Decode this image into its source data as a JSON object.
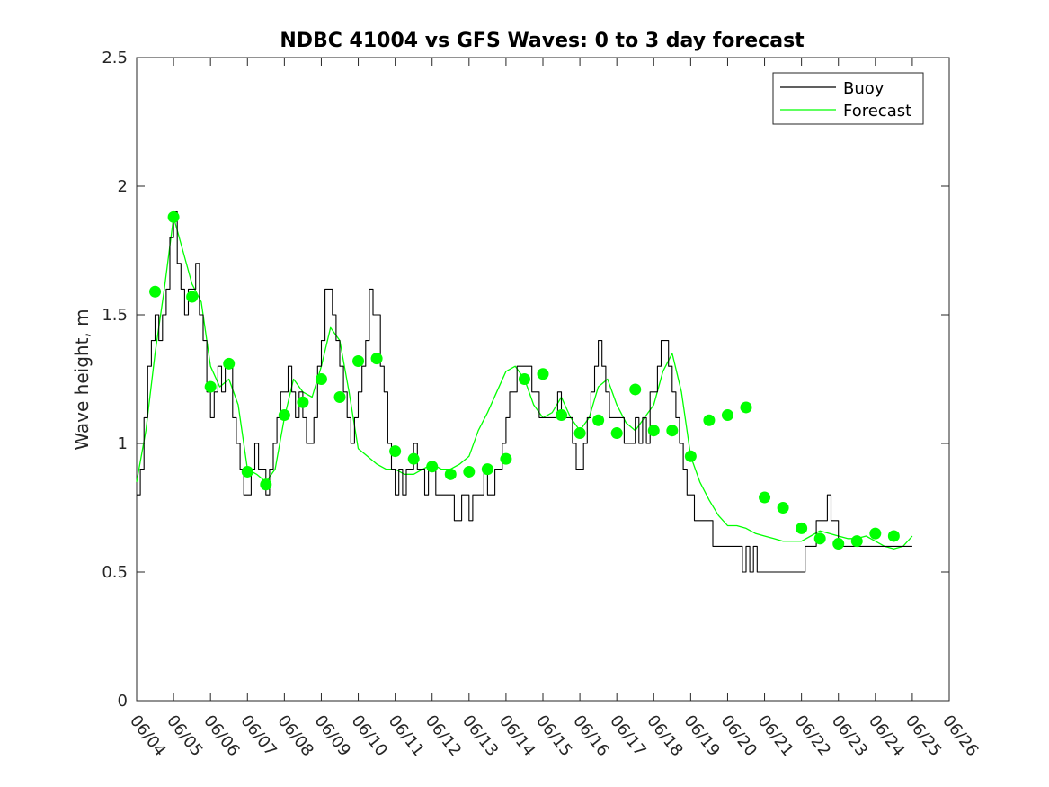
{
  "chart_data": {
    "type": "line",
    "title": "NDBC 41004 vs GFS Waves: 0 to 3 day forecast",
    "xlabel": "",
    "ylabel": "Wave height, m",
    "x_ticks": [
      "06/04",
      "06/05",
      "06/06",
      "06/07",
      "06/08",
      "06/09",
      "06/10",
      "06/11",
      "06/12",
      "06/13",
      "06/14",
      "06/15",
      "06/16",
      "06/17",
      "06/18",
      "06/19",
      "06/20",
      "06/21",
      "06/22",
      "06/23",
      "06/24",
      "06/25",
      "06/26"
    ],
    "xlim_days": [
      0,
      22
    ],
    "y_ticks": [
      0,
      0.5,
      1,
      1.5,
      2,
      2.5
    ],
    "y_tick_labels": [
      "0",
      "0.5",
      "1",
      "1.5",
      "2",
      "2.5"
    ],
    "ylim": [
      0,
      2.5
    ],
    "grid": false,
    "legend": {
      "placement": "top-right",
      "entries": [
        {
          "label": "Buoy",
          "color": "#000000"
        },
        {
          "label": "Forecast",
          "color": "#00ff00"
        }
      ]
    },
    "buoy_series": {
      "name": "Buoy",
      "color": "#000000",
      "points": [
        [
          0.0,
          0.8
        ],
        [
          0.1,
          0.9
        ],
        [
          0.2,
          1.1
        ],
        [
          0.3,
          1.3
        ],
        [
          0.4,
          1.4
        ],
        [
          0.5,
          1.5
        ],
        [
          0.6,
          1.4
        ],
        [
          0.7,
          1.5
        ],
        [
          0.8,
          1.6
        ],
        [
          0.9,
          1.8
        ],
        [
          1.0,
          1.9
        ],
        [
          1.1,
          1.7
        ],
        [
          1.2,
          1.6
        ],
        [
          1.3,
          1.5
        ],
        [
          1.4,
          1.6
        ],
        [
          1.5,
          1.6
        ],
        [
          1.6,
          1.7
        ],
        [
          1.7,
          1.5
        ],
        [
          1.8,
          1.4
        ],
        [
          1.9,
          1.2
        ],
        [
          2.0,
          1.1
        ],
        [
          2.1,
          1.2
        ],
        [
          2.2,
          1.3
        ],
        [
          2.3,
          1.2
        ],
        [
          2.4,
          1.3
        ],
        [
          2.5,
          1.3
        ],
        [
          2.6,
          1.1
        ],
        [
          2.7,
          1.0
        ],
        [
          2.8,
          0.9
        ],
        [
          2.9,
          0.8
        ],
        [
          3.0,
          0.8
        ],
        [
          3.1,
          0.9
        ],
        [
          3.2,
          1.0
        ],
        [
          3.3,
          0.9
        ],
        [
          3.4,
          0.9
        ],
        [
          3.5,
          0.8
        ],
        [
          3.6,
          0.9
        ],
        [
          3.7,
          1.0
        ],
        [
          3.8,
          1.1
        ],
        [
          3.9,
          1.2
        ],
        [
          4.0,
          1.2
        ],
        [
          4.1,
          1.3
        ],
        [
          4.2,
          1.2
        ],
        [
          4.3,
          1.1
        ],
        [
          4.4,
          1.2
        ],
        [
          4.5,
          1.1
        ],
        [
          4.6,
          1.0
        ],
        [
          4.7,
          1.0
        ],
        [
          4.8,
          1.1
        ],
        [
          4.9,
          1.3
        ],
        [
          5.0,
          1.4
        ],
        [
          5.1,
          1.6
        ],
        [
          5.2,
          1.6
        ],
        [
          5.3,
          1.5
        ],
        [
          5.4,
          1.4
        ],
        [
          5.5,
          1.3
        ],
        [
          5.6,
          1.2
        ],
        [
          5.7,
          1.1
        ],
        [
          5.8,
          1.0
        ],
        [
          5.9,
          1.1
        ],
        [
          6.0,
          1.2
        ],
        [
          6.1,
          1.3
        ],
        [
          6.2,
          1.4
        ],
        [
          6.3,
          1.6
        ],
        [
          6.4,
          1.5
        ],
        [
          6.5,
          1.5
        ],
        [
          6.6,
          1.3
        ],
        [
          6.7,
          1.2
        ],
        [
          6.8,
          1.0
        ],
        [
          6.9,
          0.9
        ],
        [
          7.0,
          0.8
        ],
        [
          7.1,
          0.9
        ],
        [
          7.2,
          0.8
        ],
        [
          7.3,
          0.9
        ],
        [
          7.4,
          0.9
        ],
        [
          7.5,
          1.0
        ],
        [
          7.6,
          0.9
        ],
        [
          7.7,
          0.9
        ],
        [
          7.8,
          0.8
        ],
        [
          7.9,
          0.9
        ],
        [
          8.0,
          0.9
        ],
        [
          8.1,
          0.8
        ],
        [
          8.2,
          0.8
        ],
        [
          8.3,
          0.8
        ],
        [
          8.4,
          0.8
        ],
        [
          8.5,
          0.8
        ],
        [
          8.6,
          0.7
        ],
        [
          8.7,
          0.7
        ],
        [
          8.8,
          0.8
        ],
        [
          8.9,
          0.8
        ],
        [
          9.0,
          0.7
        ],
        [
          9.1,
          0.8
        ],
        [
          9.2,
          0.8
        ],
        [
          9.3,
          0.8
        ],
        [
          9.4,
          0.9
        ],
        [
          9.5,
          0.8
        ],
        [
          9.6,
          0.8
        ],
        [
          9.7,
          0.9
        ],
        [
          9.8,
          0.9
        ],
        [
          9.9,
          1.0
        ],
        [
          10.0,
          1.1
        ],
        [
          10.1,
          1.2
        ],
        [
          10.2,
          1.2
        ],
        [
          10.3,
          1.3
        ],
        [
          10.4,
          1.3
        ],
        [
          10.5,
          1.3
        ],
        [
          10.6,
          1.3
        ],
        [
          10.7,
          1.2
        ],
        [
          10.8,
          1.2
        ],
        [
          10.9,
          1.1
        ],
        [
          11.0,
          1.1
        ],
        [
          11.1,
          1.1
        ],
        [
          11.2,
          1.1
        ],
        [
          11.3,
          1.1
        ],
        [
          11.4,
          1.2
        ],
        [
          11.5,
          1.1
        ],
        [
          11.6,
          1.1
        ],
        [
          11.7,
          1.1
        ],
        [
          11.8,
          1.0
        ],
        [
          11.9,
          0.9
        ],
        [
          12.0,
          0.9
        ],
        [
          12.1,
          1.0
        ],
        [
          12.2,
          1.1
        ],
        [
          12.3,
          1.2
        ],
        [
          12.4,
          1.3
        ],
        [
          12.5,
          1.4
        ],
        [
          12.6,
          1.3
        ],
        [
          12.7,
          1.2
        ],
        [
          12.8,
          1.1
        ],
        [
          12.9,
          1.1
        ],
        [
          13.0,
          1.1
        ],
        [
          13.1,
          1.1
        ],
        [
          13.2,
          1.0
        ],
        [
          13.3,
          1.0
        ],
        [
          13.4,
          1.0
        ],
        [
          13.5,
          1.1
        ],
        [
          13.6,
          1.0
        ],
        [
          13.7,
          1.1
        ],
        [
          13.8,
          1.0
        ],
        [
          13.9,
          1.2
        ],
        [
          14.0,
          1.2
        ],
        [
          14.1,
          1.3
        ],
        [
          14.2,
          1.4
        ],
        [
          14.3,
          1.4
        ],
        [
          14.4,
          1.3
        ],
        [
          14.5,
          1.2
        ],
        [
          14.6,
          1.1
        ],
        [
          14.7,
          1.0
        ],
        [
          14.8,
          0.9
        ],
        [
          14.9,
          0.8
        ],
        [
          15.0,
          0.8
        ],
        [
          15.1,
          0.7
        ],
        [
          15.2,
          0.7
        ],
        [
          15.3,
          0.7
        ],
        [
          15.4,
          0.7
        ],
        [
          15.5,
          0.7
        ],
        [
          15.6,
          0.6
        ],
        [
          15.7,
          0.6
        ],
        [
          15.8,
          0.6
        ],
        [
          15.9,
          0.6
        ],
        [
          16.0,
          0.6
        ],
        [
          16.1,
          0.6
        ],
        [
          16.2,
          0.6
        ],
        [
          16.3,
          0.6
        ],
        [
          16.4,
          0.5
        ],
        [
          16.5,
          0.6
        ],
        [
          16.6,
          0.5
        ],
        [
          16.7,
          0.6
        ],
        [
          16.8,
          0.5
        ],
        [
          16.9,
          0.5
        ],
        [
          17.0,
          0.5
        ],
        [
          17.1,
          0.5
        ],
        [
          17.2,
          0.5
        ],
        [
          17.3,
          0.5
        ],
        [
          17.4,
          0.5
        ],
        [
          17.5,
          0.5
        ],
        [
          17.6,
          0.5
        ],
        [
          17.7,
          0.5
        ],
        [
          17.8,
          0.5
        ],
        [
          17.9,
          0.5
        ],
        [
          18.0,
          0.5
        ],
        [
          18.1,
          0.6
        ],
        [
          18.2,
          0.6
        ],
        [
          18.3,
          0.6
        ],
        [
          18.4,
          0.7
        ],
        [
          18.5,
          0.7
        ],
        [
          18.6,
          0.7
        ],
        [
          18.7,
          0.8
        ],
        [
          18.8,
          0.7
        ],
        [
          18.9,
          0.7
        ],
        [
          19.0,
          0.6
        ],
        [
          19.1,
          0.6
        ],
        [
          19.2,
          0.6
        ],
        [
          19.3,
          0.6
        ],
        [
          19.4,
          0.6
        ],
        [
          19.5,
          0.6
        ],
        [
          19.6,
          0.6
        ],
        [
          19.7,
          0.6
        ],
        [
          19.8,
          0.6
        ],
        [
          19.9,
          0.6
        ],
        [
          20.0,
          0.6
        ],
        [
          20.1,
          0.6
        ],
        [
          20.2,
          0.6
        ],
        [
          20.3,
          0.6
        ],
        [
          20.4,
          0.6
        ],
        [
          20.5,
          0.6
        ],
        [
          20.6,
          0.6
        ],
        [
          20.7,
          0.6
        ],
        [
          20.8,
          0.6
        ],
        [
          20.9,
          0.6
        ],
        [
          21.0,
          0.6
        ]
      ]
    },
    "forecast_series": {
      "name": "Forecast",
      "color": "#00ff00",
      "points": [
        [
          0.0,
          0.85
        ],
        [
          0.25,
          1.05
        ],
        [
          0.5,
          1.35
        ],
        [
          0.75,
          1.6
        ],
        [
          1.0,
          1.88
        ],
        [
          1.25,
          1.75
        ],
        [
          1.5,
          1.62
        ],
        [
          1.75,
          1.55
        ],
        [
          2.0,
          1.3
        ],
        [
          2.25,
          1.22
        ],
        [
          2.5,
          1.25
        ],
        [
          2.75,
          1.15
        ],
        [
          3.0,
          0.9
        ],
        [
          3.25,
          0.88
        ],
        [
          3.5,
          0.85
        ],
        [
          3.75,
          0.9
        ],
        [
          4.0,
          1.1
        ],
        [
          4.25,
          1.25
        ],
        [
          4.5,
          1.2
        ],
        [
          4.75,
          1.18
        ],
        [
          5.0,
          1.3
        ],
        [
          5.25,
          1.45
        ],
        [
          5.5,
          1.4
        ],
        [
          5.75,
          1.2
        ],
        [
          6.0,
          0.98
        ],
        [
          6.25,
          0.95
        ],
        [
          6.5,
          0.92
        ],
        [
          6.75,
          0.9
        ],
        [
          7.0,
          0.9
        ],
        [
          7.25,
          0.88
        ],
        [
          7.5,
          0.88
        ],
        [
          7.75,
          0.9
        ],
        [
          8.0,
          0.92
        ],
        [
          8.25,
          0.9
        ],
        [
          8.5,
          0.9
        ],
        [
          8.75,
          0.92
        ],
        [
          9.0,
          0.95
        ],
        [
          9.25,
          1.05
        ],
        [
          9.5,
          1.12
        ],
        [
          9.75,
          1.2
        ],
        [
          10.0,
          1.28
        ],
        [
          10.25,
          1.3
        ],
        [
          10.5,
          1.25
        ],
        [
          10.75,
          1.15
        ],
        [
          11.0,
          1.1
        ],
        [
          11.25,
          1.12
        ],
        [
          11.5,
          1.18
        ],
        [
          11.75,
          1.1
        ],
        [
          12.0,
          1.05
        ],
        [
          12.25,
          1.1
        ],
        [
          12.5,
          1.22
        ],
        [
          12.75,
          1.25
        ],
        [
          13.0,
          1.15
        ],
        [
          13.25,
          1.08
        ],
        [
          13.5,
          1.05
        ],
        [
          13.75,
          1.1
        ],
        [
          14.0,
          1.15
        ],
        [
          14.25,
          1.28
        ],
        [
          14.5,
          1.35
        ],
        [
          14.75,
          1.2
        ],
        [
          15.0,
          0.95
        ],
        [
          15.25,
          0.85
        ],
        [
          15.5,
          0.78
        ],
        [
          15.75,
          0.72
        ],
        [
          16.0,
          0.68
        ],
        [
          16.25,
          0.68
        ],
        [
          16.5,
          0.67
        ],
        [
          16.75,
          0.65
        ],
        [
          17.0,
          0.64
        ],
        [
          17.25,
          0.63
        ],
        [
          17.5,
          0.62
        ],
        [
          17.75,
          0.62
        ],
        [
          18.0,
          0.62
        ],
        [
          18.25,
          0.64
        ],
        [
          18.5,
          0.66
        ],
        [
          18.75,
          0.65
        ],
        [
          19.0,
          0.64
        ],
        [
          19.25,
          0.63
        ],
        [
          19.5,
          0.63
        ],
        [
          19.75,
          0.64
        ],
        [
          20.0,
          0.62
        ],
        [
          20.25,
          0.6
        ],
        [
          20.5,
          0.59
        ],
        [
          20.75,
          0.6
        ],
        [
          21.0,
          0.64
        ]
      ]
    },
    "analysis_points": [
      [
        0.5,
        1.59
      ],
      [
        1.0,
        1.88
      ],
      [
        1.5,
        1.57
      ],
      [
        2.0,
        1.22
      ],
      [
        2.5,
        1.31
      ],
      [
        3.0,
        0.89
      ],
      [
        3.5,
        0.84
      ],
      [
        4.0,
        1.11
      ],
      [
        4.5,
        1.16
      ],
      [
        5.0,
        1.25
      ],
      [
        5.5,
        1.18
      ],
      [
        6.0,
        1.32
      ],
      [
        6.5,
        1.33
      ],
      [
        7.0,
        0.97
      ],
      [
        7.5,
        0.94
      ],
      [
        8.0,
        0.91
      ],
      [
        8.5,
        0.88
      ],
      [
        9.0,
        0.89
      ],
      [
        9.5,
        0.9
      ],
      [
        10.0,
        0.94
      ],
      [
        10.5,
        1.25
      ],
      [
        11.0,
        1.27
      ],
      [
        11.5,
        1.11
      ],
      [
        12.0,
        1.04
      ],
      [
        12.5,
        1.09
      ],
      [
        13.0,
        1.04
      ],
      [
        13.5,
        1.21
      ],
      [
        14.0,
        1.05
      ],
      [
        14.5,
        1.05
      ],
      [
        15.0,
        0.95
      ],
      [
        15.5,
        1.09
      ],
      [
        16.0,
        1.11
      ],
      [
        16.5,
        1.14
      ],
      [
        17.0,
        0.79
      ],
      [
        17.5,
        0.75
      ],
      [
        18.0,
        0.67
      ],
      [
        18.5,
        0.63
      ],
      [
        19.0,
        0.61
      ],
      [
        19.5,
        0.62
      ],
      [
        20.0,
        0.65
      ],
      [
        20.5,
        0.64
      ]
    ]
  }
}
